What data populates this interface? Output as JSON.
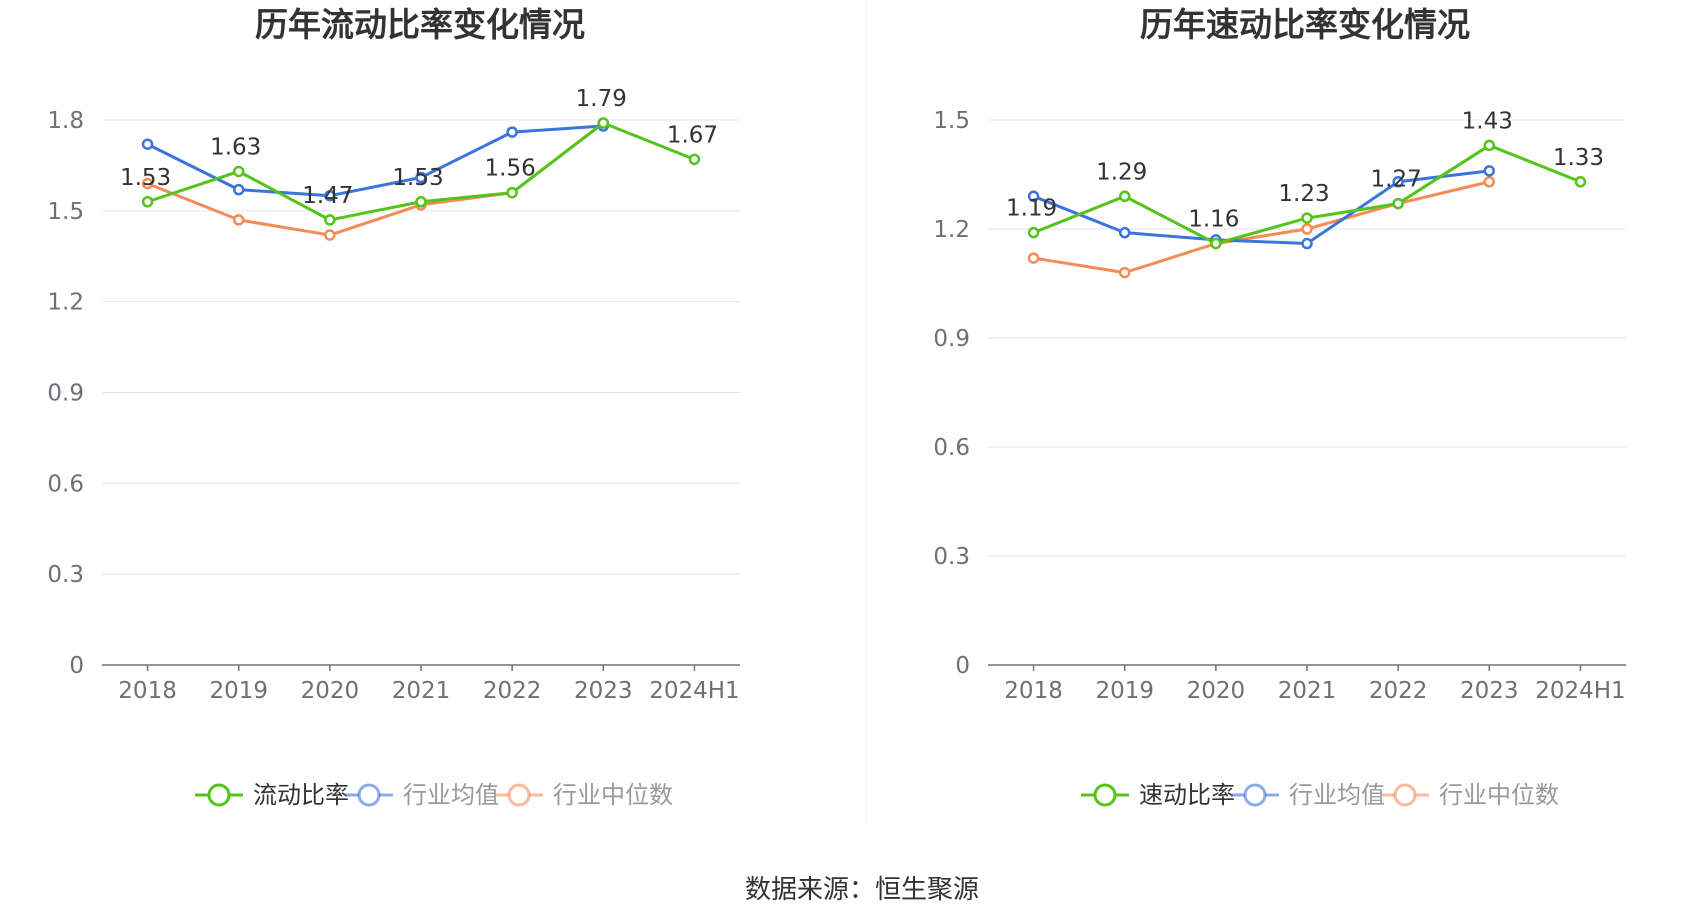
{
  "colors": {
    "primary": "#52c41a",
    "average": "#3b74db",
    "median": "#f58b57",
    "grid": "#e0e6f1",
    "axis": "#6e7079"
  },
  "source_text": "数据来源：恒生聚源",
  "chart_data": [
    {
      "type": "line",
      "title": "历年流动比率变化情况",
      "categories": [
        "2018",
        "2019",
        "2020",
        "2021",
        "2022",
        "2023",
        "2024H1"
      ],
      "ylim": [
        0,
        1.8
      ],
      "yticks": [
        "0",
        "0.3",
        "0.6",
        "0.9",
        "1.2",
        "1.5",
        "1.8"
      ],
      "grid": true,
      "legend_position": "bottom-center",
      "series": [
        {
          "name": "流动比率",
          "key": "primary",
          "values": [
            1.53,
            1.63,
            1.47,
            1.53,
            1.56,
            1.79,
            1.67
          ],
          "labels": [
            "1.53",
            "1.63",
            "1.47",
            "1.53",
            "1.56",
            "1.79",
            "1.67"
          ]
        },
        {
          "name": "行业均值",
          "key": "average",
          "values": [
            1.72,
            1.57,
            1.55,
            1.61,
            1.76,
            1.78,
            null
          ]
        },
        {
          "name": "行业中位数",
          "key": "median",
          "values": [
            1.59,
            1.47,
            1.42,
            1.52,
            1.56,
            1.79,
            null
          ]
        }
      ]
    },
    {
      "type": "line",
      "title": "历年速动比率变化情况",
      "categories": [
        "2018",
        "2019",
        "2020",
        "2021",
        "2022",
        "2023",
        "2024H1"
      ],
      "ylim": [
        0,
        1.5
      ],
      "yticks": [
        "0",
        "0.3",
        "0.6",
        "0.9",
        "1.2",
        "1.5"
      ],
      "grid": true,
      "legend_position": "bottom-center",
      "series": [
        {
          "name": "速动比率",
          "key": "primary",
          "values": [
            1.19,
            1.29,
            1.16,
            1.23,
            1.27,
            1.43,
            1.33
          ],
          "labels": [
            "1.19",
            "1.29",
            "1.16",
            "1.23",
            "1.27",
            "1.43",
            "1.33"
          ]
        },
        {
          "name": "行业均值",
          "key": "average",
          "values": [
            1.29,
            1.19,
            1.17,
            1.16,
            1.33,
            1.36,
            null
          ]
        },
        {
          "name": "行业中位数",
          "key": "median",
          "values": [
            1.12,
            1.08,
            1.16,
            1.2,
            1.27,
            1.33,
            null
          ]
        }
      ]
    }
  ]
}
